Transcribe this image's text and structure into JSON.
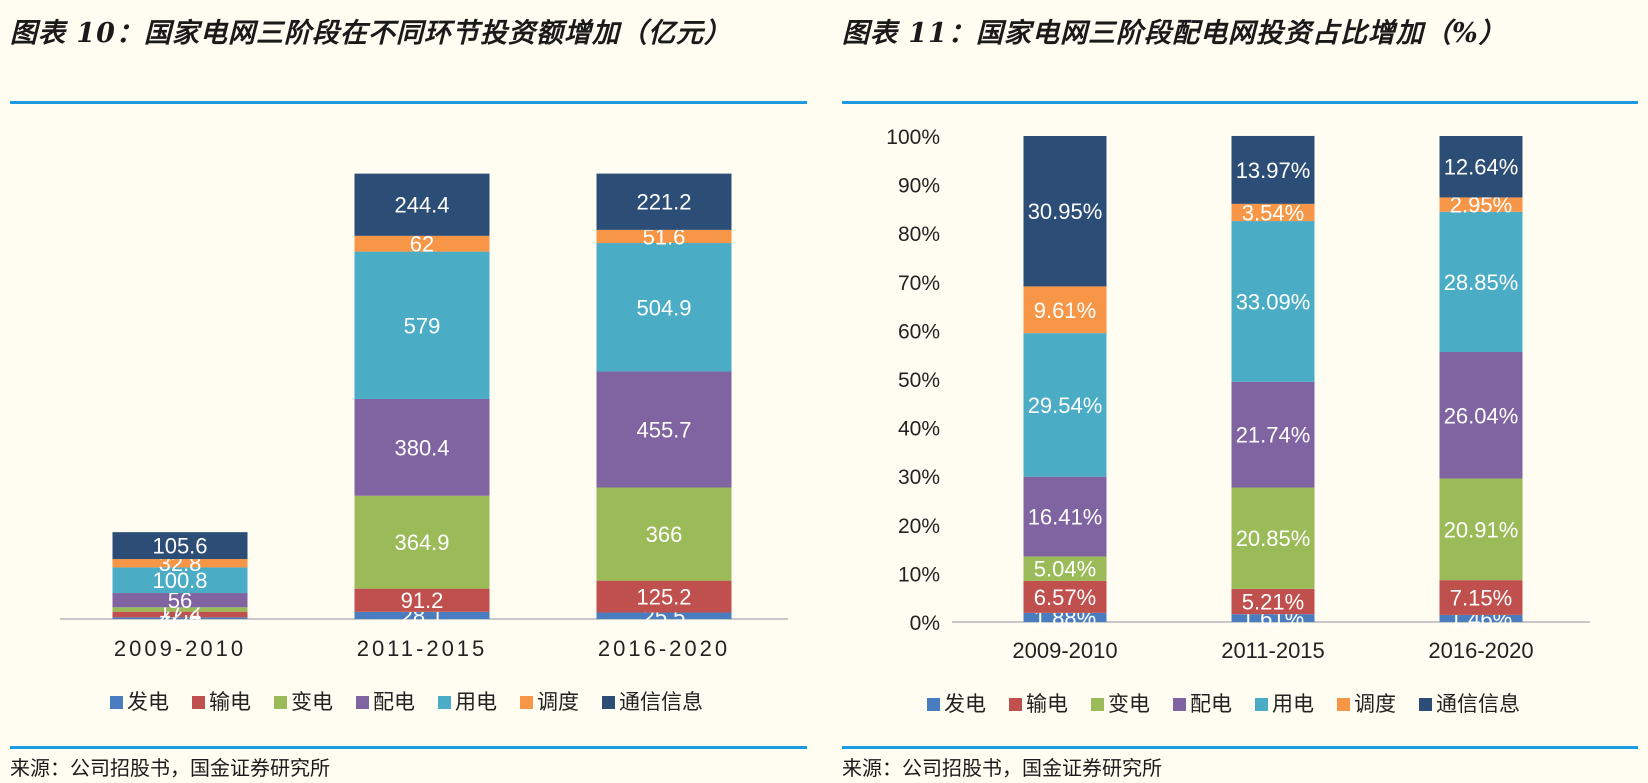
{
  "left": {
    "title": "图表 10：国家电网三阶段在不同环节投资额增加（亿元）",
    "source": "来源：公司招股书，国金证券研究所"
  },
  "right": {
    "title": "图表 11：国家电网三阶段配电网投资占比增加（%）",
    "source": "来源：公司招股书，国金证券研究所"
  },
  "colors": {
    "发电": "#4a7cc0",
    "输电": "#c0504d",
    "变电": "#9bbb59",
    "配电": "#8064a2",
    "用电": "#4bacc6",
    "调度": "#f79646",
    "通信信息": "#2c4d75"
  },
  "chart_data": [
    {
      "type": "bar",
      "stacked": true,
      "title": "图表 10：国家电网三阶段在不同环节投资额增加（亿元）",
      "categories": [
        "2009-2010",
        "2011-2015",
        "2016-2020"
      ],
      "series": [
        {
          "name": "发电",
          "values": [
            6.4,
            28.1,
            25.5
          ],
          "labels": [
            "6.4",
            "28.1",
            "25.5"
          ]
        },
        {
          "name": "输电",
          "values": [
            22.4,
            91.2,
            125.2
          ],
          "labels": [
            "22.4",
            "91.2",
            "125.2"
          ]
        },
        {
          "name": "变电",
          "values": [
            17.2,
            364.9,
            366
          ],
          "labels": [
            "17.2",
            "364.9",
            "366"
          ]
        },
        {
          "name": "配电",
          "values": [
            56,
            380.4,
            455.7
          ],
          "labels": [
            "56",
            "380.4",
            "455.7"
          ]
        },
        {
          "name": "用电",
          "values": [
            100.8,
            579,
            504.9
          ],
          "labels": [
            "100.8",
            "579",
            "504.9"
          ]
        },
        {
          "name": "调度",
          "values": [
            32.8,
            62,
            51.6
          ],
          "labels": [
            "32.8",
            "62",
            "51.6"
          ]
        },
        {
          "name": "通信信息",
          "values": [
            105.6,
            244.4,
            221.2
          ],
          "labels": [
            "105.6",
            "244.4",
            "221.2"
          ]
        }
      ],
      "ylim": [
        0,
        2000
      ],
      "xlabel": "",
      "ylabel": "",
      "legend": "bottom"
    },
    {
      "type": "bar",
      "stacked": true,
      "title": "图表 11：国家电网三阶段配电网投资占比增加（%）",
      "categories": [
        "2009-2010",
        "2011-2015",
        "2016-2020"
      ],
      "series": [
        {
          "name": "发电",
          "values": [
            1.88,
            1.61,
            1.46
          ],
          "labels": [
            "1.88%",
            "1.61%",
            "1.46%"
          ]
        },
        {
          "name": "输电",
          "values": [
            6.57,
            5.21,
            7.15
          ],
          "labels": [
            "6.57%",
            "5.21%",
            "7.15%"
          ]
        },
        {
          "name": "变电",
          "values": [
            5.04,
            20.85,
            20.91
          ],
          "labels": [
            "5.04%",
            "20.85%",
            "20.91%"
          ]
        },
        {
          "name": "配电",
          "values": [
            16.41,
            21.74,
            26.04
          ],
          "labels": [
            "16.41%",
            "21.74%",
            "26.04%"
          ]
        },
        {
          "name": "用电",
          "values": [
            29.54,
            33.09,
            28.85
          ],
          "labels": [
            "29.54%",
            "33.09%",
            "28.85%"
          ]
        },
        {
          "name": "调度",
          "values": [
            9.61,
            3.54,
            2.95
          ],
          "labels": [
            "9.61%",
            "3.54%",
            "2.95%"
          ]
        },
        {
          "name": "通信信息",
          "values": [
            30.95,
            13.97,
            12.64
          ],
          "labels": [
            "30.95%",
            "13.97%",
            "12.64%"
          ]
        }
      ],
      "ylim": [
        0,
        100
      ],
      "yticks": [
        "0%",
        "10%",
        "20%",
        "30%",
        "40%",
        "50%",
        "60%",
        "70%",
        "80%",
        "90%",
        "100%"
      ],
      "xlabel": "",
      "ylabel": "",
      "legend": "bottom"
    }
  ]
}
